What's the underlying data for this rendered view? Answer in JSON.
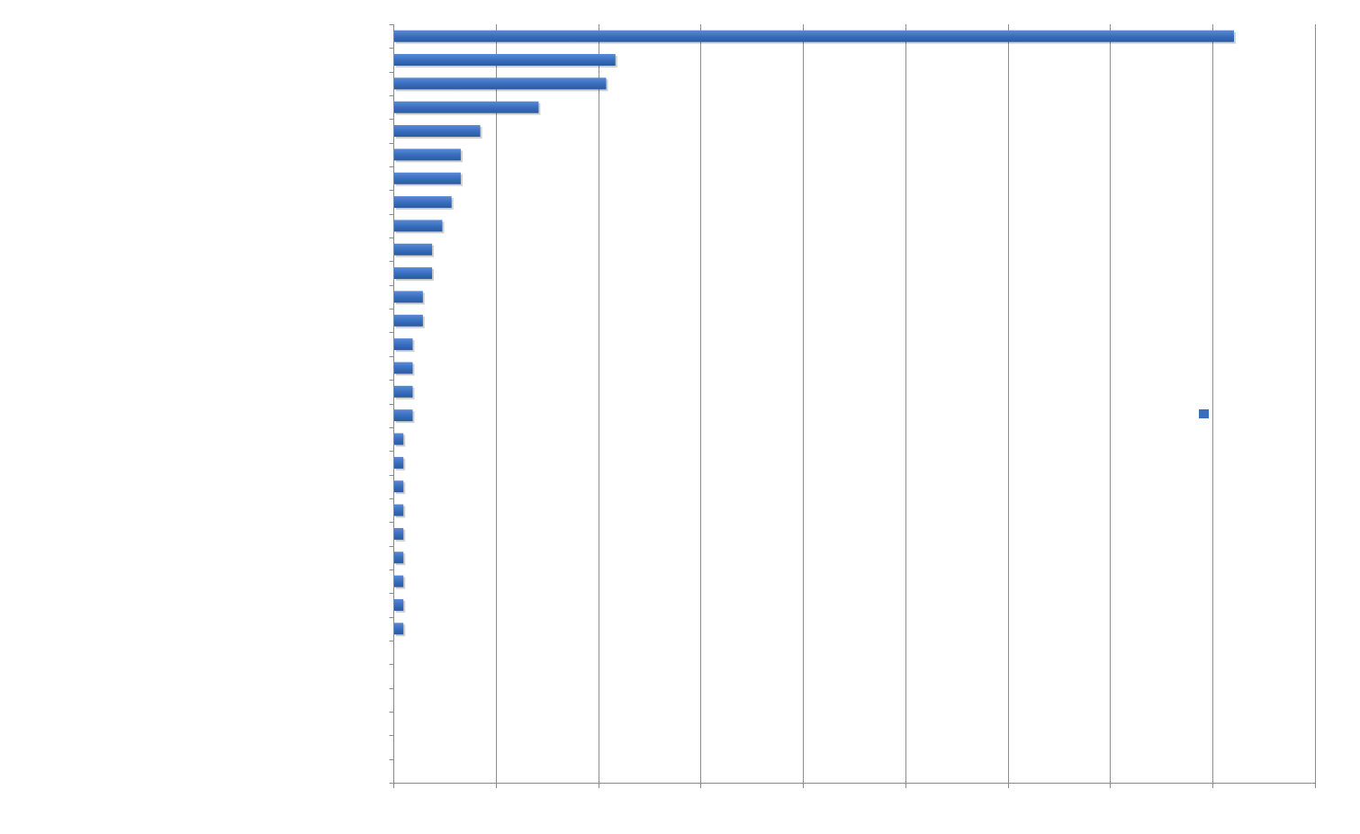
{
  "chart_data": {
    "type": "bar",
    "orientation": "horizontal",
    "title": "",
    "xlabel": "",
    "ylabel": "",
    "categories": [
      "",
      "",
      "",
      "",
      "",
      "",
      "",
      "",
      "",
      "",
      "",
      "",
      "",
      "",
      "",
      "",
      "",
      "",
      "",
      "",
      "",
      "",
      "",
      "",
      "",
      "",
      "",
      "",
      "",
      "",
      "",
      ""
    ],
    "values": [
      82,
      21.6,
      20.7,
      14.1,
      8.4,
      6.5,
      6.5,
      5.6,
      4.7,
      3.7,
      3.7,
      2.8,
      2.8,
      1.8,
      1.8,
      1.8,
      1.8,
      0.9,
      0.9,
      0.9,
      0.9,
      0.9,
      0.9,
      0.9,
      0.9,
      0.9,
      0,
      0,
      0,
      0,
      0,
      0
    ],
    "xlim": [
      0,
      90
    ],
    "x_tick_step": 10,
    "x_tick_labels_shown": false,
    "grid": "vertical",
    "legend": {
      "position": "right",
      "entries": [
        ""
      ]
    },
    "bar_color": "#3A6FBF",
    "axis_color": "#888888",
    "grid_color": "#8C8C8C"
  }
}
